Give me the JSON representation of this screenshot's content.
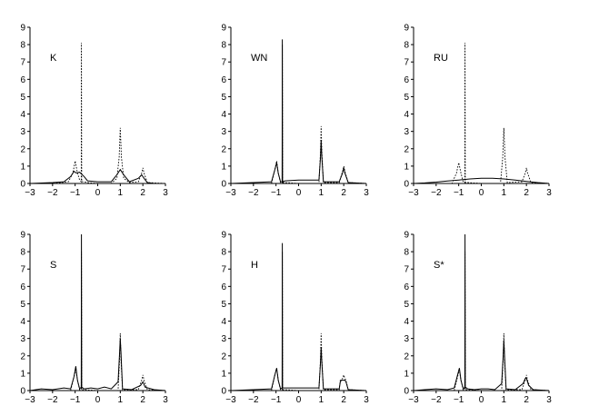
{
  "chart_data": [
    {
      "type": "line",
      "label": "K",
      "xlim": [
        -3,
        3
      ],
      "ylim": [
        0,
        9
      ],
      "xticks": [
        -3,
        -2,
        -1,
        0,
        1,
        2,
        3
      ],
      "yticks": [
        0,
        1,
        2,
        3,
        4,
        5,
        6,
        7,
        8,
        9
      ],
      "series": [
        {
          "style": "solid",
          "x": [
            -3,
            -2,
            -1.5,
            -1.2,
            -1.05,
            -0.95,
            -0.8,
            -0.6,
            -0.45,
            0,
            0.6,
            0.85,
            1,
            1.15,
            1.4,
            1.8,
            1.95,
            2.05,
            2.2,
            2.5,
            3
          ],
          "y": [
            0,
            0.05,
            0.1,
            0.4,
            0.7,
            0.6,
            0.65,
            0.4,
            0.15,
            0.1,
            0.1,
            0.5,
            0.8,
            0.5,
            0.1,
            0.3,
            0.5,
            0.3,
            0.05,
            0,
            0
          ]
        },
        {
          "style": "dotted",
          "x": [
            -3,
            -2,
            -1.3,
            -1.1,
            -1,
            -0.9,
            -0.8,
            -0.73,
            -0.72,
            -0.71,
            -0.6,
            -0.45,
            0,
            0.6,
            0.85,
            0.95,
            1,
            1.05,
            1.15,
            1.4,
            1.8,
            1.95,
            2,
            2.05,
            2.2,
            3
          ],
          "y": [
            0,
            0,
            0.1,
            0.6,
            1.3,
            0.6,
            0.2,
            0.1,
            8.1,
            0.1,
            0.1,
            0.05,
            0,
            0,
            0.3,
            1.5,
            3.2,
            1.5,
            0.3,
            0.05,
            0.1,
            0.6,
            0.9,
            0.6,
            0.05,
            0
          ]
        }
      ]
    },
    {
      "type": "line",
      "label": "WN",
      "xlim": [
        -3,
        3
      ],
      "ylim": [
        0,
        9
      ],
      "xticks": [
        -3,
        -2,
        -1,
        0,
        1,
        2,
        3
      ],
      "yticks": [
        0,
        1,
        2,
        3,
        4,
        5,
        6,
        7,
        8,
        9
      ],
      "series": [
        {
          "style": "solid",
          "x": [
            -3,
            -2,
            -1.2,
            -1.05,
            -0.97,
            -0.9,
            -0.8,
            -0.73,
            -0.72,
            -0.71,
            -0.6,
            0,
            0.9,
            0.97,
            1,
            1.03,
            1.1,
            1.8,
            1.95,
            2,
            2.05,
            2.2,
            3
          ],
          "y": [
            0,
            0.05,
            0.1,
            0.8,
            1.2,
            0.6,
            0.1,
            0.1,
            8.3,
            0.1,
            0.15,
            0.2,
            0.2,
            1.5,
            2.5,
            1.5,
            0.1,
            0.1,
            0.6,
            0.9,
            0.6,
            0.05,
            0
          ]
        },
        {
          "style": "dotted",
          "x": [
            -3,
            -1.2,
            -1.05,
            -0.97,
            -0.9,
            -0.8,
            -0.73,
            -0.72,
            -0.71,
            -0.6,
            0,
            0.9,
            0.97,
            1,
            1.03,
            1.1,
            1.8,
            1.95,
            2,
            2.05,
            2.2,
            3
          ],
          "y": [
            0,
            0,
            0.8,
            1.3,
            0.6,
            0.05,
            0.05,
            8.0,
            0.05,
            0.05,
            0,
            0,
            1.8,
            3.3,
            1.8,
            0.05,
            0.05,
            0.7,
            1.0,
            0.7,
            0.05,
            0
          ]
        }
      ]
    },
    {
      "type": "line",
      "label": "RU",
      "xlim": [
        -3,
        3
      ],
      "ylim": [
        0,
        9
      ],
      "xticks": [
        -3,
        -2,
        -1,
        0,
        1,
        2,
        3
      ],
      "yticks": [
        0,
        1,
        2,
        3,
        4,
        5,
        6,
        7,
        8,
        9
      ],
      "series": [
        {
          "style": "solid",
          "x": [
            -3,
            -2.5,
            -2,
            -1.5,
            -1,
            -0.5,
            0,
            0.5,
            1,
            1.5,
            2,
            2.5,
            3
          ],
          "y": [
            0,
            0.03,
            0.08,
            0.14,
            0.2,
            0.26,
            0.3,
            0.3,
            0.26,
            0.2,
            0.12,
            0.05,
            0
          ]
        },
        {
          "style": "dotted",
          "x": [
            -3,
            -1.3,
            -1.1,
            -1,
            -0.9,
            -0.8,
            -0.73,
            -0.72,
            -0.71,
            -0.6,
            0,
            0.85,
            0.95,
            1,
            1.05,
            1.15,
            1.8,
            1.95,
            2,
            2.05,
            2.2,
            3
          ],
          "y": [
            0,
            0,
            0.6,
            1.2,
            0.6,
            0.1,
            0.05,
            8.1,
            0.05,
            0.05,
            0,
            0,
            1.5,
            3.2,
            1.5,
            0.05,
            0.1,
            0.6,
            0.9,
            0.6,
            0.05,
            0
          ]
        }
      ]
    },
    {
      "type": "line",
      "label": "S",
      "xlim": [
        -3,
        3
      ],
      "ylim": [
        0,
        9
      ],
      "xticks": [
        -3,
        -2,
        -1,
        0,
        1,
        2,
        3
      ],
      "yticks": [
        0,
        1,
        2,
        3,
        4,
        5,
        6,
        7,
        8,
        9
      ],
      "series": [
        {
          "style": "solid",
          "x": [
            -3,
            -2.5,
            -2,
            -1.5,
            -1.2,
            -1.05,
            -0.97,
            -0.9,
            -0.8,
            -0.73,
            -0.72,
            -0.71,
            -0.6,
            -0.3,
            0,
            0.3,
            0.6,
            0.9,
            0.97,
            1,
            1.03,
            1.1,
            1.5,
            1.9,
            2,
            2.1,
            2.5,
            3
          ],
          "y": [
            0,
            0.1,
            0.05,
            0.15,
            0.1,
            0.8,
            1.4,
            0.6,
            0.1,
            0.2,
            9.0,
            0.2,
            0.1,
            0.15,
            0.1,
            0.2,
            0.1,
            0.5,
            2.2,
            3.0,
            2.2,
            0.1,
            0.05,
            0.3,
            0.5,
            0.2,
            0.05,
            0
          ]
        },
        {
          "style": "dotted",
          "x": [
            -3,
            -1.2,
            -1.05,
            -0.97,
            -0.9,
            -0.8,
            -0.73,
            -0.72,
            -0.71,
            -0.6,
            0,
            0.9,
            0.97,
            1,
            1.03,
            1.1,
            1.8,
            1.95,
            2,
            2.05,
            2.2,
            3
          ],
          "y": [
            0,
            0,
            0.8,
            1.2,
            0.6,
            0.05,
            0.05,
            8.0,
            0.05,
            0.05,
            0,
            0,
            1.8,
            3.3,
            1.8,
            0.05,
            0.05,
            0.6,
            0.9,
            0.6,
            0.05,
            0
          ]
        }
      ]
    },
    {
      "type": "line",
      "label": "H",
      "xlim": [
        -3,
        3
      ],
      "ylim": [
        0,
        9
      ],
      "xticks": [
        -3,
        -2,
        -1,
        0,
        1,
        2,
        3
      ],
      "yticks": [
        0,
        1,
        2,
        3,
        4,
        5,
        6,
        7,
        8,
        9
      ],
      "series": [
        {
          "style": "solid",
          "x": [
            -3,
            -2,
            -1.2,
            -1.05,
            -0.97,
            -0.9,
            -0.8,
            -0.73,
            -0.72,
            -0.71,
            -0.6,
            0,
            0.9,
            0.97,
            1,
            1.03,
            1.1,
            1.8,
            1.85,
            1.9,
            2.05,
            2.1,
            2.2,
            3
          ],
          "y": [
            0,
            0.05,
            0.1,
            0.9,
            1.3,
            0.6,
            0.1,
            0.15,
            8.5,
            0.15,
            0.15,
            0.15,
            0.15,
            1.6,
            2.5,
            1.6,
            0.1,
            0.1,
            0.5,
            0.6,
            0.6,
            0.5,
            0.05,
            0
          ]
        },
        {
          "style": "dotted",
          "x": [
            -3,
            -1.2,
            -1.05,
            -0.97,
            -0.9,
            -0.8,
            -0.73,
            -0.72,
            -0.71,
            -0.6,
            0,
            0.9,
            0.97,
            1,
            1.03,
            1.1,
            1.8,
            1.85,
            1.95,
            2,
            2.05,
            2.1,
            2.2,
            3
          ],
          "y": [
            0,
            0,
            0.9,
            1.3,
            0.6,
            0.05,
            0.05,
            8.0,
            0.05,
            0.05,
            0,
            0,
            1.8,
            3.3,
            1.8,
            0.05,
            0.05,
            0.6,
            0.7,
            0.9,
            0.7,
            0.6,
            0.05,
            0
          ]
        }
      ]
    },
    {
      "type": "line",
      "label": "S*",
      "xlim": [
        -3,
        3
      ],
      "ylim": [
        0,
        9
      ],
      "xticks": [
        -3,
        -2,
        -1,
        0,
        1,
        2,
        3
      ],
      "yticks": [
        0,
        1,
        2,
        3,
        4,
        5,
        6,
        7,
        8,
        9
      ],
      "series": [
        {
          "style": "solid",
          "x": [
            -3,
            -2.5,
            -2,
            -1.5,
            -1.2,
            -1.05,
            -0.97,
            -0.9,
            -0.8,
            -0.73,
            -0.72,
            -0.71,
            -0.6,
            -0.3,
            0,
            0.3,
            0.6,
            0.9,
            0.97,
            1,
            1.03,
            1.1,
            1.5,
            1.85,
            1.95,
            2,
            2.1,
            2.3,
            3
          ],
          "y": [
            0,
            0.05,
            0.1,
            0.05,
            0.15,
            0.9,
            1.3,
            0.6,
            0.1,
            0.2,
            9.0,
            0.2,
            0.1,
            0.05,
            0.1,
            0.1,
            0.05,
            0.4,
            2.0,
            2.9,
            2.0,
            0.1,
            0.05,
            0.4,
            0.7,
            0.7,
            0.3,
            0.05,
            0
          ]
        },
        {
          "style": "dotted",
          "x": [
            -3,
            -1.2,
            -1.05,
            -0.97,
            -0.9,
            -0.8,
            -0.73,
            -0.72,
            -0.71,
            -0.6,
            0,
            0.9,
            0.97,
            1,
            1.03,
            1.1,
            1.8,
            1.95,
            2,
            2.05,
            2.2,
            3
          ],
          "y": [
            0,
            0,
            0.8,
            1.2,
            0.6,
            0.05,
            0.05,
            8.0,
            0.05,
            0.05,
            0,
            0,
            1.8,
            3.3,
            1.8,
            0.05,
            0.05,
            0.6,
            0.9,
            0.6,
            0.05,
            0
          ]
        }
      ]
    }
  ]
}
